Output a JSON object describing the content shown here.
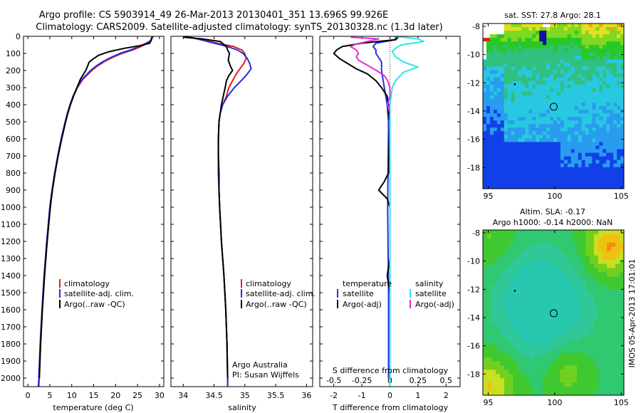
{
  "header": {
    "line1": "Argo profile: CS 5903914_49 26-Mar-2013 20130401_351 13.696S 99.926E",
    "line2": "Climatology: CARS2009. Satellite-adjusted climatology: synTS_20130328.nc (1.3d later)"
  },
  "colors": {
    "climatology": "#e0201c",
    "satellite": "#2230e0",
    "argo": "#000000",
    "sat_salinity": "#2ee6ea",
    "argo_salinity": "#e030d8"
  },
  "depth_axis": {
    "range": [
      0,
      2050
    ],
    "ticks": [
      "0",
      "100",
      "200",
      "300",
      "400",
      "500",
      "600",
      "700",
      "800",
      "900",
      "1000",
      "1100",
      "1200",
      "1300",
      "1400",
      "1500",
      "1600",
      "1700",
      "1800",
      "1900",
      "2000"
    ]
  },
  "chart_data": [
    {
      "type": "line",
      "name": "temperature-profile",
      "xlabel": "temperature (deg C)",
      "xlim": [
        -1,
        31
      ],
      "xticks": [
        "0",
        "5",
        "10",
        "15",
        "20",
        "25",
        "30"
      ],
      "ylim": [
        2050,
        0
      ],
      "legend": [
        "climatology",
        "satellite-adj. clim.",
        "Argo(..raw -QC)"
      ],
      "series": [
        {
          "name": "climatology",
          "color": "#e0201c",
          "depth": [
            0,
            10,
            25,
            40,
            60,
            80,
            100,
            125,
            150,
            175,
            200,
            250,
            300,
            350,
            400,
            450,
            500,
            600,
            700,
            800,
            900,
            1000,
            1200,
            1400,
            1600,
            1800,
            2000,
            2050
          ],
          "values": [
            28.4,
            28.2,
            28.0,
            27.3,
            25.8,
            23.9,
            21.5,
            19.2,
            17.3,
            15.8,
            14.6,
            12.6,
            11.3,
            10.4,
            9.7,
            9.1,
            8.6,
            7.7,
            6.9,
            6.2,
            5.6,
            5.1,
            4.4,
            3.8,
            3.3,
            2.9,
            2.6,
            2.5
          ]
        },
        {
          "name": "satellite",
          "color": "#2230e0",
          "depth": [
            0,
            10,
            25,
            40,
            60,
            80,
            100,
            125,
            150,
            175,
            200,
            250,
            300,
            350,
            400,
            450,
            500,
            600,
            700,
            800,
            900,
            1000,
            1200,
            1400,
            1600,
            1800,
            2000,
            2050
          ],
          "values": [
            28.6,
            28.3,
            28.0,
            27.0,
            25.3,
            23.4,
            21.0,
            18.8,
            17.0,
            15.5,
            14.3,
            12.4,
            11.2,
            10.3,
            9.6,
            9.0,
            8.5,
            7.6,
            6.8,
            6.1,
            5.5,
            5.0,
            4.3,
            3.7,
            3.2,
            2.8,
            2.5,
            2.4
          ]
        },
        {
          "name": "argo",
          "color": "#000000",
          "depth": [
            5,
            20,
            40,
            55,
            70,
            90,
            110,
            130,
            150,
            175,
            200,
            225,
            250,
            300,
            350,
            400,
            450,
            500,
            600,
            700,
            800,
            900,
            1000,
            1200,
            1400,
            1600,
            1800,
            2000
          ],
          "values": [
            28.3,
            28.2,
            27.8,
            25.5,
            22.0,
            18.5,
            16.2,
            15.0,
            14.0,
            13.6,
            13.2,
            12.6,
            12.0,
            11.2,
            10.4,
            9.7,
            9.1,
            8.6,
            7.7,
            6.9,
            6.2,
            5.6,
            5.1,
            4.4,
            3.8,
            3.3,
            2.9,
            2.6
          ]
        }
      ]
    },
    {
      "type": "line",
      "name": "salinity-profile",
      "xlabel": "salinity",
      "xlim": [
        33.8,
        36.1
      ],
      "xticks": [
        "34",
        "34.5",
        "35",
        "35.5",
        "36"
      ],
      "ylim": [
        2050,
        0
      ],
      "legend": [
        "climatology",
        "satellite-adj. clim.",
        "Argo(..raw -QC)"
      ],
      "annotation": [
        "Argo Australia",
        "PI: Susan Wijffels"
      ],
      "series": [
        {
          "name": "climatology",
          "color": "#e0201c",
          "depth": [
            0,
            20,
            40,
            60,
            80,
            100,
            130,
            160,
            190,
            220,
            260,
            300,
            350,
            400,
            450,
            500,
            600,
            800,
            1000,
            1200,
            1400,
            1600,
            1800,
            2000,
            2050
          ],
          "values": [
            34.05,
            34.3,
            34.55,
            34.82,
            34.95,
            35.0,
            35.02,
            34.98,
            34.92,
            34.86,
            34.8,
            34.74,
            34.7,
            34.64,
            34.6,
            34.58,
            34.57,
            34.57,
            34.59,
            34.62,
            34.66,
            34.69,
            34.71,
            34.72,
            34.72
          ]
        },
        {
          "name": "satellite",
          "color": "#2230e0",
          "depth": [
            0,
            20,
            40,
            60,
            80,
            100,
            130,
            160,
            190,
            220,
            260,
            300,
            350,
            400,
            450,
            500,
            600,
            800,
            1000,
            1200,
            1400,
            1600,
            1800,
            2000,
            2050
          ],
          "values": [
            34.05,
            34.28,
            34.5,
            34.72,
            34.88,
            34.97,
            35.04,
            35.08,
            35.1,
            35.04,
            34.94,
            34.83,
            34.72,
            34.64,
            34.6,
            34.58,
            34.57,
            34.57,
            34.59,
            34.62,
            34.66,
            34.69,
            34.71,
            34.72,
            34.72
          ]
        },
        {
          "name": "argo",
          "color": "#000000",
          "depth": [
            5,
            15,
            30,
            45,
            60,
            80,
            100,
            120,
            140,
            170,
            200,
            230,
            260,
            300,
            350,
            400,
            450,
            500,
            600,
            700,
            800,
            900,
            1000,
            1200,
            1400,
            1600,
            1800,
            2000
          ],
          "values": [
            34.0,
            34.3,
            34.6,
            34.65,
            34.7,
            34.72,
            34.75,
            34.74,
            34.73,
            34.76,
            34.8,
            34.74,
            34.7,
            34.68,
            34.65,
            34.62,
            34.6,
            34.58,
            34.57,
            34.57,
            34.58,
            34.58,
            34.59,
            34.62,
            34.66,
            34.69,
            34.71,
            34.72
          ]
        }
      ]
    },
    {
      "type": "line",
      "name": "difference-profile",
      "xlabel": "T difference from climatology",
      "xlim": [
        -2.5,
        2.5
      ],
      "xticks": [
        "-2",
        "-1",
        "0",
        "1",
        "2"
      ],
      "x2label": "S difference from climatology",
      "x2lim": [
        -0.625,
        0.625
      ],
      "x2ticks": [
        "-0.5",
        "-0.25",
        "0",
        "0.25",
        "0.5"
      ],
      "ylim": [
        2050,
        0
      ],
      "legend": {
        "temperature": "temperature",
        "salinity": "salinity",
        "satellite": "satellite",
        "argo_adj": "Argo(-adj)"
      },
      "series": [
        {
          "name": "temperature satellite",
          "color": "#2230e0",
          "depth": [
            0,
            20,
            40,
            60,
            80,
            100,
            150,
            200,
            300,
            400,
            500,
            1000,
            1500,
            2000
          ],
          "values": [
            0.2,
            0.2,
            -0.5,
            -0.6,
            -0.5,
            -0.5,
            -0.3,
            -0.3,
            -0.2,
            -0.1,
            -0.05,
            -0.08,
            -0.05,
            -0.05
          ]
        },
        {
          "name": "temperature argo",
          "color": "#000000",
          "depth": [
            5,
            20,
            40,
            60,
            80,
            100,
            130,
            160,
            190,
            220,
            260,
            300,
            350,
            400,
            450,
            500,
            600,
            700,
            800,
            850,
            900,
            950,
            1000,
            1300,
            1400,
            1500,
            1700,
            2000
          ],
          "values": [
            0.3,
            0.2,
            -1.0,
            -1.7,
            -1.9,
            -2.0,
            -1.8,
            -1.5,
            -1.2,
            -0.8,
            -0.5,
            -0.3,
            -0.1,
            -0.05,
            -0.05,
            0.0,
            -0.02,
            -0.04,
            -0.05,
            -0.2,
            -0.4,
            -0.1,
            0.0,
            0.0,
            -0.1,
            0.0,
            0.0,
            0.0
          ]
        },
        {
          "name": "salinity satellite",
          "color": "#2ee6ea",
          "depth": [
            0,
            15,
            30,
            50,
            70,
            90,
            120,
            150,
            180,
            210,
            260,
            300,
            400,
            500,
            800,
            1200,
            1600,
            2050
          ],
          "values": [
            0.05,
            0.25,
            0.3,
            0.1,
            0.05,
            0.02,
            0.05,
            0.12,
            0.25,
            0.12,
            0.05,
            0.02,
            0.0,
            0.0,
            0.0,
            0.0,
            0.0,
            0.0
          ]
        },
        {
          "name": "salinity argo",
          "color": "#e030d8",
          "depth": [
            5,
            15,
            30,
            45,
            60,
            80,
            100,
            120,
            140,
            170,
            200,
            230,
            260,
            300,
            350,
            400,
            450
          ],
          "values": [
            -0.35,
            -0.1,
            -0.2,
            -0.3,
            -0.35,
            -0.3,
            -0.28,
            -0.3,
            -0.28,
            -0.2,
            -0.12,
            -0.05,
            -0.02,
            0.0,
            0.0,
            -0.02,
            0.0
          ]
        }
      ]
    },
    {
      "type": "heatmap",
      "name": "sst-map",
      "title": "sat. SST: 27.8 Argo: 28.1",
      "xlim": [
        94.6,
        105.2
      ],
      "ylim": [
        -19.5,
        -7.8
      ],
      "xticks": [
        "95",
        "100",
        "105"
      ],
      "yticks": [
        "-8",
        "-10",
        "-12",
        "-14",
        "-16",
        "-18"
      ],
      "argo_position": {
        "lon": 99.926,
        "lat": -13.696
      }
    },
    {
      "type": "heatmap",
      "name": "sla-map",
      "title": "Altim. SLA: -0.17",
      "subtitle": "Argo h1000: -0.14 h2000: NaN",
      "xlim": [
        94.6,
        105.2
      ],
      "ylim": [
        -19.5,
        -7.8
      ],
      "xticks": [
        "95",
        "100",
        "105"
      ],
      "yticks": [
        "-8",
        "-10",
        "-12",
        "-14",
        "-16",
        "-18"
      ],
      "argo_position": {
        "lon": 99.926,
        "lat": -13.696
      }
    }
  ],
  "footer": {
    "stamp": "IMOS 05-Apr-2013 17:01:01"
  }
}
